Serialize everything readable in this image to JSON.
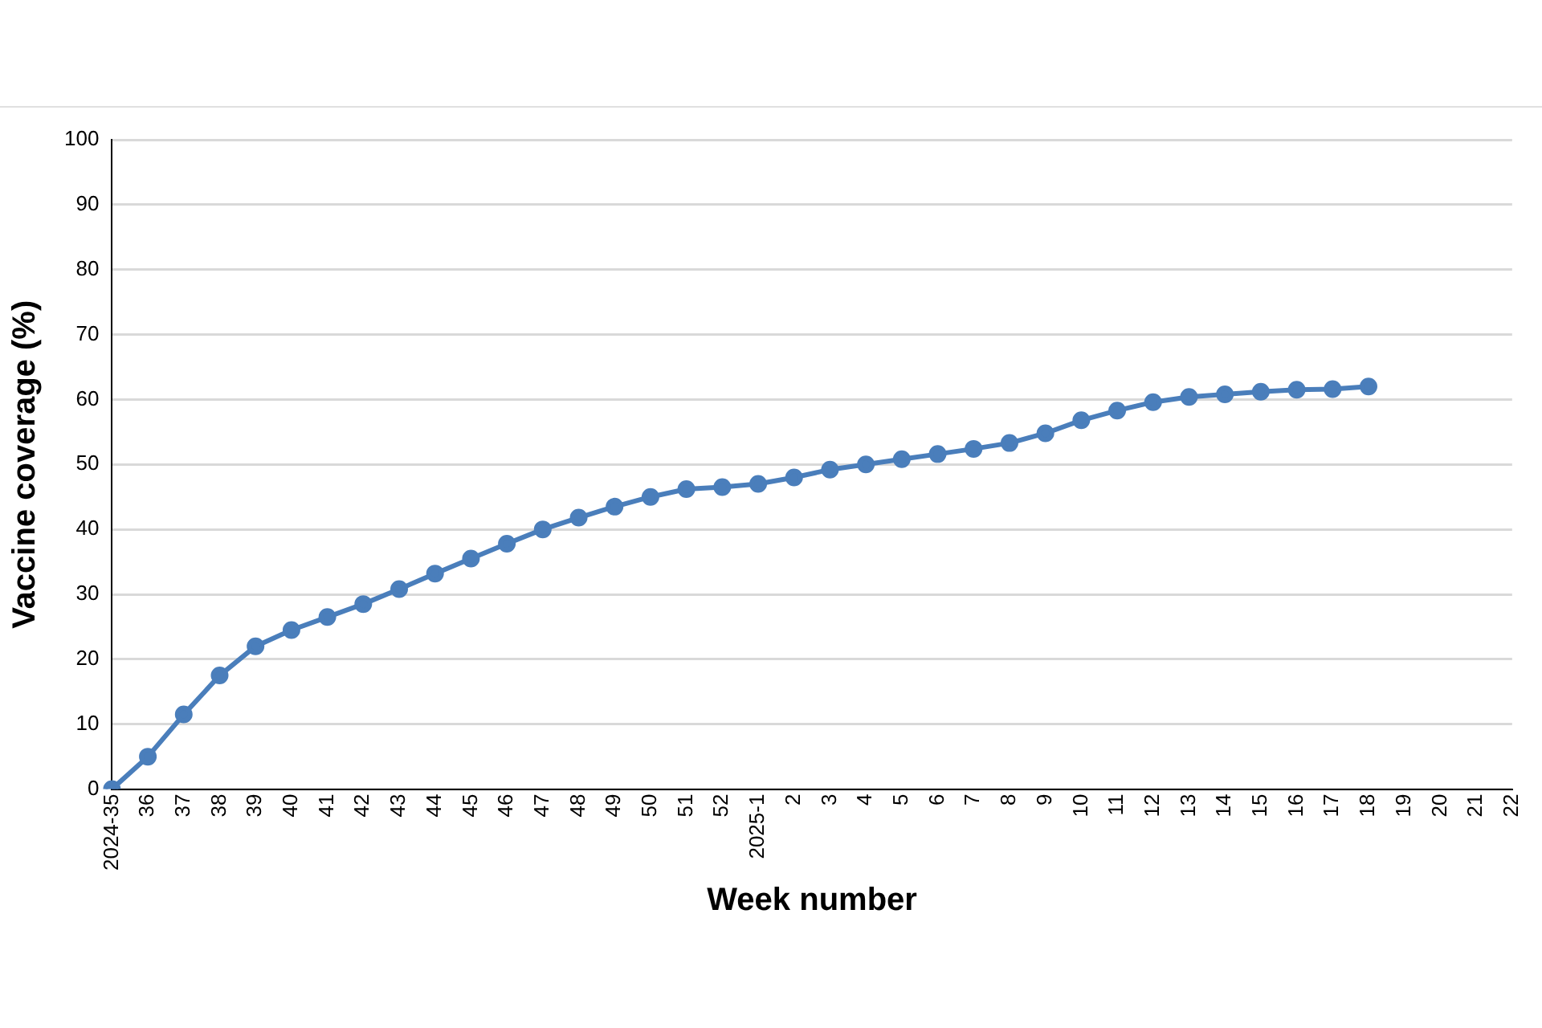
{
  "chart_data": {
    "type": "line",
    "xlabel": "Week number",
    "ylabel": "Vaccine coverage (%)",
    "categories": [
      "2024-35",
      "36",
      "37",
      "38",
      "39",
      "40",
      "41",
      "42",
      "43",
      "44",
      "45",
      "46",
      "47",
      "48",
      "49",
      "50",
      "51",
      "52",
      "2025-1",
      "2",
      "3",
      "4",
      "5",
      "6",
      "7",
      "8",
      "9",
      "10",
      "11",
      "12",
      "13",
      "14",
      "15",
      "16",
      "17",
      "18",
      "19",
      "20",
      "21",
      "22"
    ],
    "series": [
      {
        "color": "#4a7ebb",
        "values": [
          0,
          5,
          11.5,
          17.5,
          22,
          24.5,
          26.5,
          28.5,
          30.8,
          33.2,
          35.5,
          37.8,
          40,
          41.8,
          43.5,
          45,
          46.2,
          46.5,
          47,
          48,
          49.2,
          50,
          50.8,
          51.6,
          52.4,
          53.3,
          54.8,
          56.8,
          58.3,
          59.6,
          60.4,
          60.8,
          61.2,
          61.5,
          61.6,
          62,
          null,
          null,
          null,
          null
        ]
      }
    ],
    "ylim": [
      0,
      100
    ],
    "yticks": [
      0,
      10,
      20,
      30,
      40,
      50,
      60,
      70,
      80,
      90,
      100
    ],
    "grid": "y",
    "legend": false,
    "marker": "circle",
    "line_style": "solid"
  }
}
